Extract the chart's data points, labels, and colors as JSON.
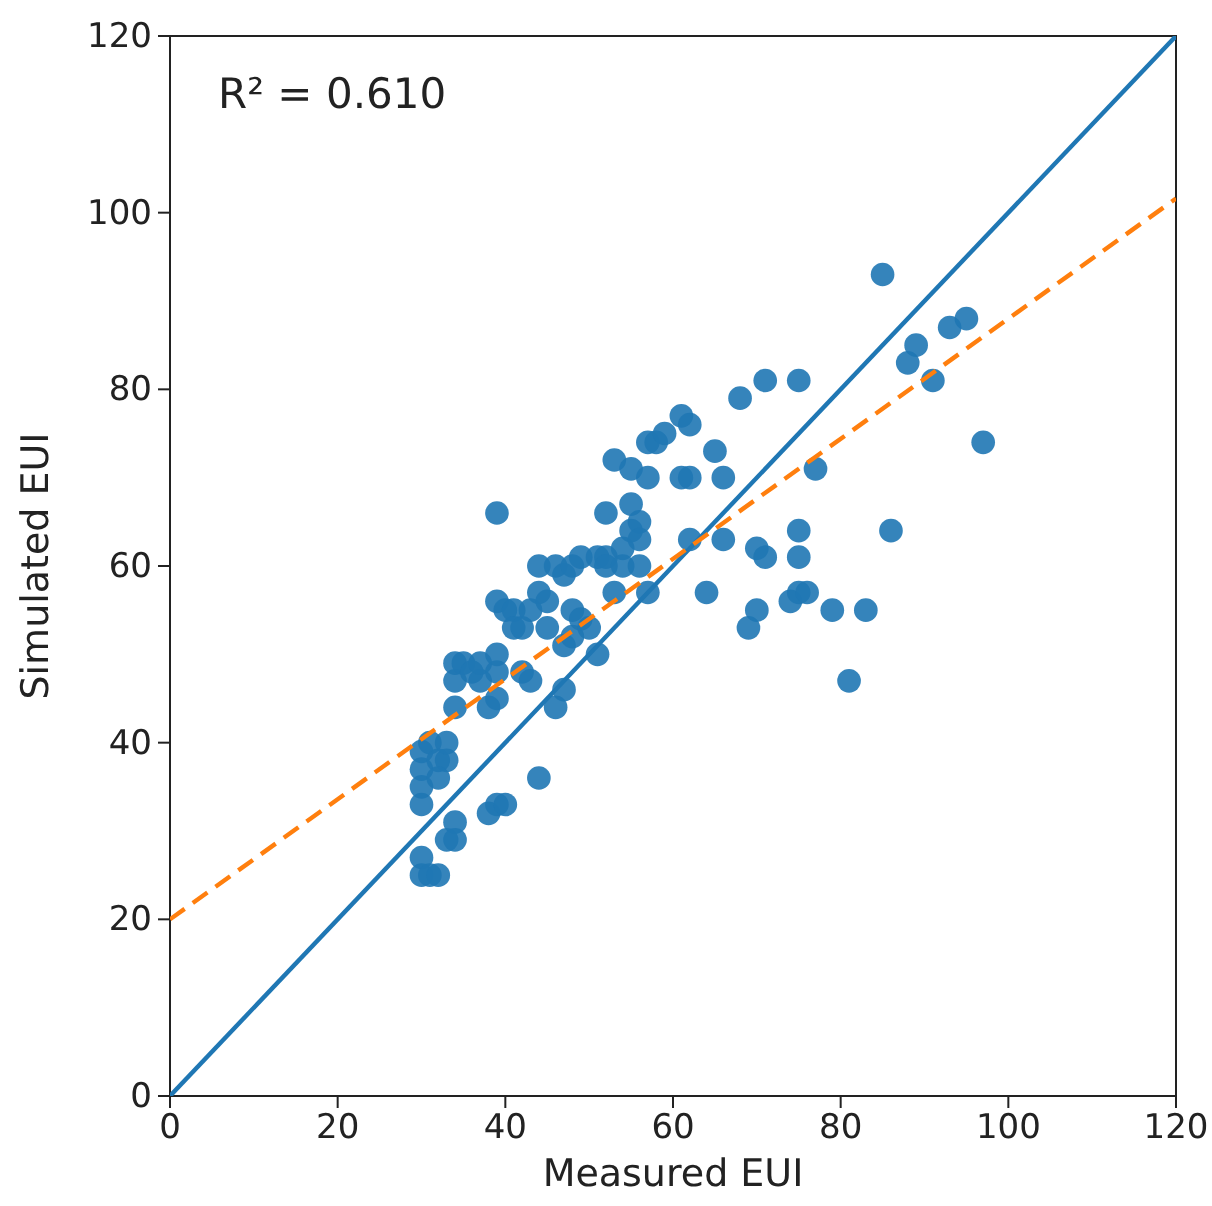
{
  "chart_data": {
    "type": "scatter",
    "xlabel": "Measured EUI",
    "ylabel": "Simulated EUI",
    "xlim": [
      0,
      120
    ],
    "ylim": [
      0,
      120
    ],
    "xticks": [
      0,
      20,
      40,
      60,
      80,
      100,
      120
    ],
    "yticks": [
      0,
      20,
      40,
      60,
      80,
      100,
      120
    ],
    "grid": false,
    "marker": "circle",
    "annotations": [
      "R² = 0.610"
    ],
    "series": [
      {
        "color": "#1f77b4",
        "x": [
          30,
          30,
          31,
          32,
          30,
          30,
          30,
          30,
          31,
          32,
          33,
          33,
          32,
          33,
          34,
          34,
          34,
          34,
          34,
          35,
          36,
          37,
          37,
          38,
          38,
          39,
          39,
          39,
          40,
          39,
          39,
          40,
          39,
          41,
          41,
          42,
          42,
          43,
          43,
          44,
          44,
          44,
          45,
          45,
          46,
          46,
          47,
          47,
          47,
          48,
          48,
          48,
          49,
          49,
          50,
          51,
          51,
          52,
          52,
          52,
          53,
          53,
          54,
          54,
          55,
          55,
          55,
          56,
          56,
          56,
          57,
          57,
          57,
          58,
          59,
          61,
          61,
          62,
          62,
          62,
          64,
          65,
          66,
          66,
          68,
          69,
          70,
          70,
          71,
          71,
          74,
          75,
          75,
          75,
          75,
          76,
          77,
          79,
          81,
          83,
          85,
          86,
          88,
          89,
          91,
          93,
          95,
          97
        ],
        "values": [
          25,
          27,
          25,
          25,
          33,
          35,
          37,
          39,
          40,
          38,
          38,
          40,
          36,
          29,
          31,
          29,
          44,
          47,
          49,
          49,
          48,
          47,
          49,
          44,
          32,
          45,
          48,
          33,
          33,
          50,
          56,
          55,
          66,
          55,
          53,
          53,
          48,
          55,
          47,
          36,
          57,
          60,
          53,
          56,
          60,
          44,
          59,
          51,
          46,
          52,
          55,
          60,
          61,
          54,
          53,
          61,
          50,
          61,
          60,
          66,
          72,
          57,
          62,
          60,
          64,
          71,
          67,
          65,
          63,
          60,
          74,
          70,
          57,
          74,
          75,
          77,
          70,
          76,
          70,
          63,
          57,
          73,
          70,
          63,
          79,
          53,
          55,
          62,
          61,
          81,
          56,
          64,
          81,
          57,
          61,
          57,
          71,
          55,
          47,
          55,
          93,
          64,
          83,
          85,
          81,
          87,
          88,
          74
        ]
      },
      {
        "type": "line",
        "color": "#1f77b4",
        "line_style": "solid",
        "marker": "none",
        "x": [
          0,
          120
        ],
        "values": [
          0,
          120
        ]
      },
      {
        "type": "line",
        "color": "#ff7f0e",
        "line_style": "dashed",
        "marker": "none",
        "x": [
          0,
          120
        ],
        "values": [
          20,
          101.6
        ]
      }
    ]
  }
}
